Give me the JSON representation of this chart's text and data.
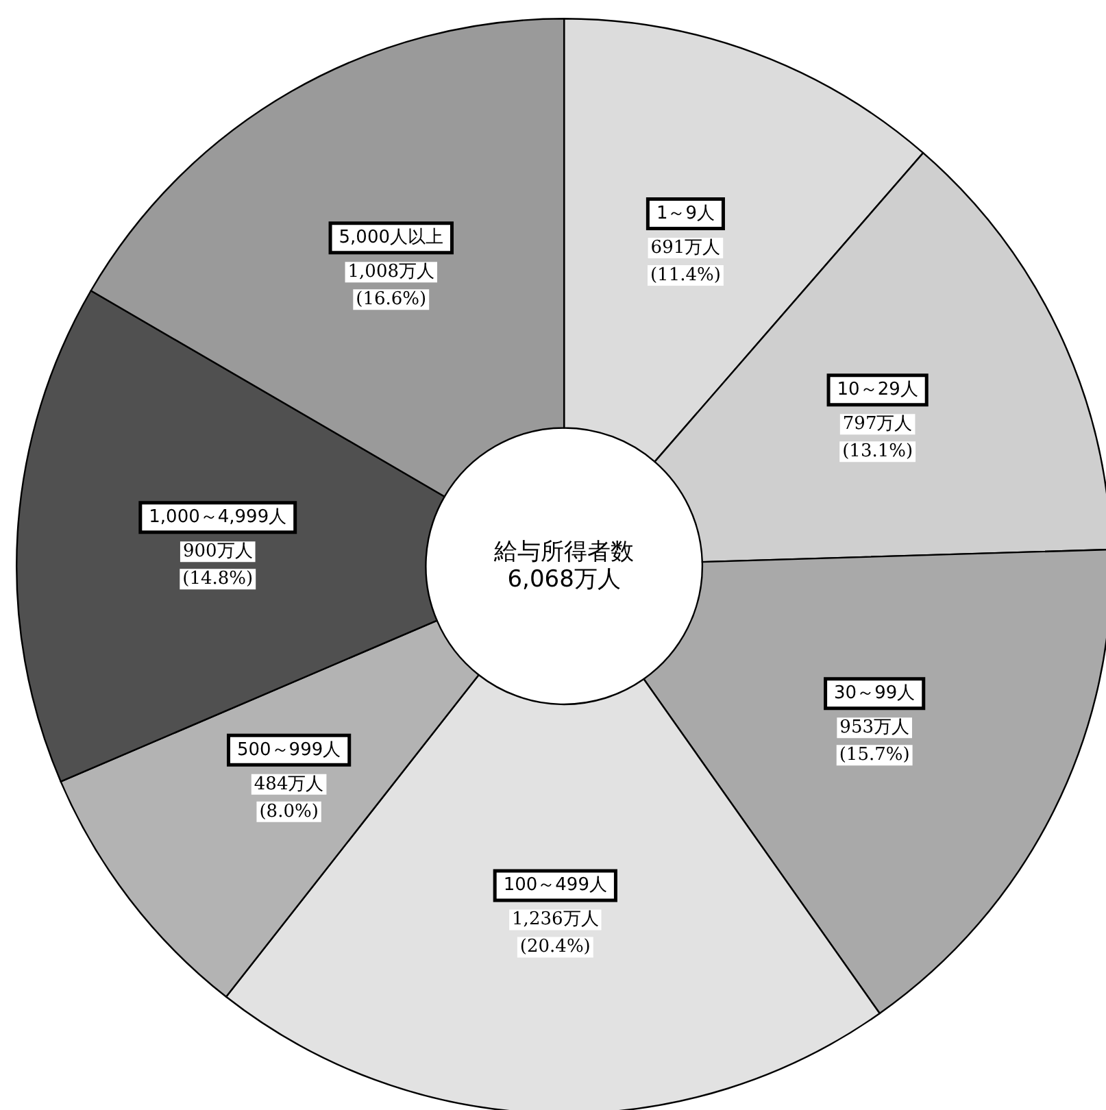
{
  "chart_data": {
    "type": "donut",
    "categories": [
      "1～9人",
      "10～29人",
      "30～99人",
      "100～499人",
      "500～999人",
      "1,000～4,999人",
      "5,000人以上"
    ],
    "values": [
      691,
      797,
      953,
      1236,
      484,
      900,
      1008
    ],
    "value_labels": [
      "691万人\n(11.4%)",
      "797万人\n(13.1%)",
      "953万人\n(15.7%)",
      "1,236万人\n(20.4%)",
      "484万人\n(8.0%)",
      "900万人\n(14.8%)",
      "1,008万人\n(16.6%)"
    ],
    "colors": [
      "#dcdcdc",
      "#cfcfcf",
      "#a9a9a9",
      "#e2e2e2",
      "#b3b3b3",
      "#505050",
      "#9a9a9a"
    ],
    "annotations": [
      "給与所得者数",
      "6,068万人"
    ],
    "legend": false
  }
}
